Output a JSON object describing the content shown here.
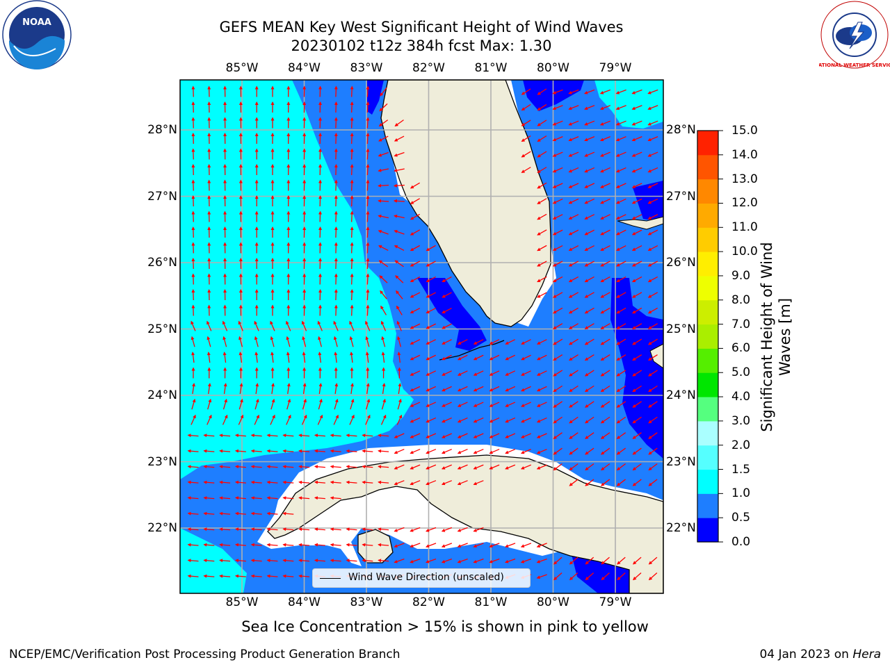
{
  "title": {
    "line1": "GEFS MEAN Key West Significant Height of Wind Waves",
    "line2": "20230102 t12z 384h fcst   Max: 1.30"
  },
  "axes": {
    "lon_labels": [
      "85°W",
      "84°W",
      "83°W",
      "82°W",
      "81°W",
      "80°W",
      "79°W"
    ],
    "lat_labels": [
      "28°N",
      "27°N",
      "26°N",
      "25°N",
      "24°N",
      "23°N",
      "22°N"
    ]
  },
  "colorbar": {
    "label_line1": "Significant Height of Wind",
    "label_line2": "Waves [m]",
    "ticks": [
      "0.0",
      "0.5",
      "1.0",
      "1.5",
      "2.0",
      "3.0",
      "4.0",
      "5.0",
      "6.0",
      "7.0",
      "8.0",
      "9.0",
      "10.0",
      "11.0",
      "12.0",
      "13.0",
      "14.0",
      "15.0"
    ],
    "colors": [
      "#0000ff",
      "#1e7eff",
      "#00ffff",
      "#55ffff",
      "#aaffff",
      "#55ff7f",
      "#00e600",
      "#55ee00",
      "#aaee00",
      "#ccee00",
      "#eeff00",
      "#ffee00",
      "#ffcc00",
      "#ffaa00",
      "#ff8800",
      "#ff5500",
      "#ff2200"
    ]
  },
  "legend": {
    "label": "Wind Wave Direction (unscaled)"
  },
  "note": "Sea Ice Concentration > 15% is shown in pink to yellow",
  "footer": {
    "left": "NCEP/EMC/Verification Post Processing Product Generation Branch",
    "right_date": "04 Jan 2023 on ",
    "right_host": "Hera"
  },
  "logos": {
    "left": "NOAA",
    "right": "NATIONAL WEATHER SERVICE"
  },
  "map_colors": {
    "cyan": "#00ffff",
    "mid_blue": "#1e7eff",
    "deep_blue": "#0000ff",
    "land": "#efedda",
    "arrow": "#ff0000",
    "grid": "#b0b0b0"
  }
}
